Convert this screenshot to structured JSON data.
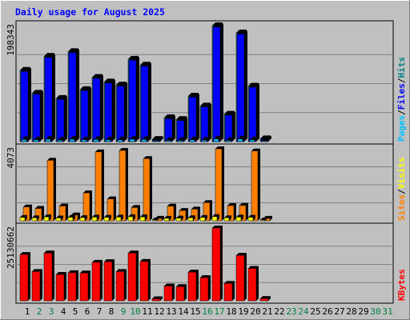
{
  "chart_data": {
    "type": "bar",
    "title": "Daily usage for August 2025",
    "categories": [
      "1",
      "2",
      "3",
      "4",
      "5",
      "6",
      "7",
      "8",
      "9",
      "10",
      "11",
      "12",
      "13",
      "14",
      "15",
      "16",
      "17",
      "18",
      "19",
      "20",
      "21",
      "22",
      "23",
      "24",
      "25",
      "26",
      "27",
      "28",
      "29",
      "30",
      "31"
    ],
    "weekend_days": [
      "2",
      "3",
      "9",
      "10",
      "16",
      "17",
      "23",
      "24",
      "30",
      "31"
    ],
    "panels": [
      {
        "id": "hits",
        "ymax_label": "198343",
        "ymax": 198343,
        "legend": [
          {
            "text": "Pages",
            "color": "#00c0ff"
          },
          {
            "text": "Files",
            "color": "#0000ff"
          },
          {
            "text": "Hits",
            "color": "#008080"
          }
        ],
        "series": [
          {
            "name": "Hits",
            "color": "#008080",
            "values": [
              122000,
              83000,
              146000,
              74000,
              154000,
              89000,
              110000,
              102000,
              97000,
              141000,
              131000,
              4000,
              41000,
              38000,
              78000,
              61000,
              198343,
              47000,
              186000,
              95000,
              5000,
              0,
              0,
              0,
              0,
              0,
              0,
              0,
              0,
              0,
              0
            ]
          },
          {
            "name": "Files",
            "color": "#0000ff",
            "values": [
              120000,
              81000,
              144000,
              72000,
              152000,
              87000,
              108000,
              100000,
              95000,
              139000,
              129000,
              3000,
              39000,
              36000,
              76000,
              59000,
              196000,
              45000,
              184000,
              93000,
              4000,
              0,
              0,
              0,
              0,
              0,
              0,
              0,
              0,
              0,
              0
            ]
          },
          {
            "name": "Pages",
            "color": "#00c0ff",
            "values": [
              3500,
              3000,
              4000,
              2500,
              4000,
              3000,
              3500,
              3000,
              3000,
              4000,
              3500,
              500,
              2000,
              2000,
              3000,
              2500,
              4500,
              2000,
              4500,
              3000,
              500,
              0,
              0,
              0,
              0,
              0,
              0,
              0,
              0,
              0,
              0
            ]
          }
        ]
      },
      {
        "id": "visits",
        "ymax_label": "4073",
        "ymax": 4073,
        "legend": [
          {
            "text": "Sites",
            "color": "#ff8000"
          },
          {
            "text": "Visits",
            "color": "#ffff00"
          }
        ],
        "series": [
          {
            "name": "Sites",
            "color": "#ff8000",
            "values": [
              780,
              700,
              3420,
              840,
              330,
              1580,
              3900,
              1240,
              3980,
              750,
              3520,
              140,
              830,
              580,
              660,
              1030,
              4073,
              860,
              870,
              3950,
              140,
              0,
              0,
              0,
              0,
              0,
              0,
              0,
              0,
              0,
              0
            ]
          },
          {
            "name": "Visits",
            "color": "#ffff00",
            "values": [
              190,
              170,
              220,
              160,
              200,
              180,
              210,
              200,
              210,
              230,
              220,
              30,
              140,
              150,
              170,
              190,
              240,
              170,
              210,
              200,
              30,
              0,
              0,
              0,
              0,
              0,
              0,
              0,
              0,
              0,
              0
            ]
          }
        ]
      },
      {
        "id": "kbytes",
        "ymax_label": "25130662",
        "ymax": 25130662,
        "legend": [
          {
            "text": "KBytes",
            "color": "#ff0000"
          }
        ],
        "series": [
          {
            "name": "KBytes",
            "color": "#ff0000",
            "values": [
              16000000,
              10100000,
              16500000,
              9100000,
              9700000,
              9600000,
              13300000,
              13500000,
              10100000,
              16500000,
              13600000,
              700000,
              5100000,
              4900000,
              9900000,
              8000000,
              25130662,
              6000000,
              15700000,
              11200000,
              800000,
              0,
              0,
              0,
              0,
              0,
              0,
              0,
              0,
              0,
              0
            ]
          }
        ]
      }
    ]
  }
}
